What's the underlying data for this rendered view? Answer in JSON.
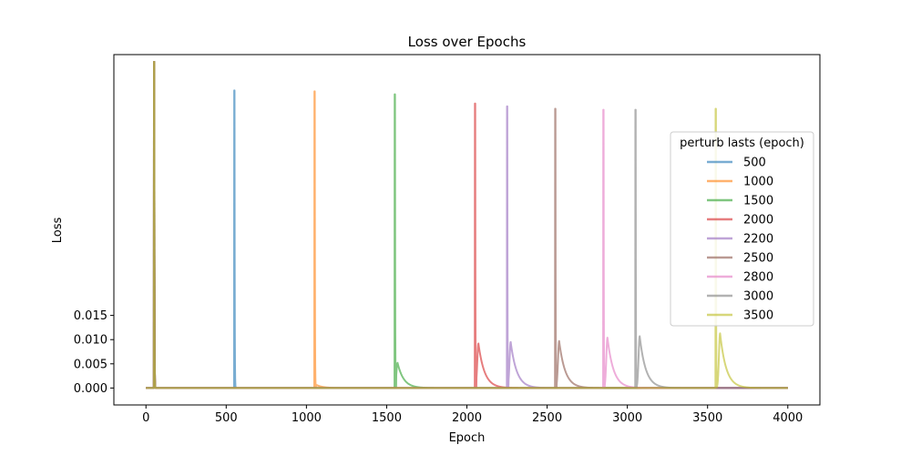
{
  "chart_data": {
    "type": "line",
    "title": "Loss over Epochs",
    "xlabel": "Epoch",
    "ylabel": "Loss",
    "xlim": [
      -200,
      4200
    ],
    "ylim": [
      -0.0035,
      0.0689
    ],
    "xticks": [
      0,
      500,
      1000,
      1500,
      2000,
      2500,
      3000,
      3500,
      4000
    ],
    "xtick_labels": [
      "0",
      "500",
      "1000",
      "1500",
      "2000",
      "2500",
      "3000",
      "3500",
      "4000"
    ],
    "yticks": [
      0.0,
      0.005,
      0.01,
      0.015
    ],
    "ytick_labels": [
      "0.000",
      "0.005",
      "0.010",
      "0.015"
    ],
    "x_range": [
      0,
      4000
    ],
    "baseline_spike": {
      "epoch": 50,
      "peak": 0.0674
    },
    "legend": {
      "title": "perturb lasts (epoch)",
      "placement": "right"
    },
    "series": [
      {
        "name": "500",
        "color": "#1f77b4",
        "spike_epoch": 550,
        "spike_peak": 0.0615,
        "bump_peak": 0.0,
        "bump_epoch": 570
      },
      {
        "name": "1000",
        "color": "#ff7f0e",
        "spike_epoch": 1050,
        "spike_peak": 0.0613,
        "bump_peak": 0.0006,
        "bump_epoch": 1065
      },
      {
        "name": "1500",
        "color": "#2ca02c",
        "spike_epoch": 1550,
        "spike_peak": 0.0607,
        "bump_peak": 0.0052,
        "bump_epoch": 1568
      },
      {
        "name": "2000",
        "color": "#d62728",
        "spike_epoch": 2050,
        "spike_peak": 0.0588,
        "bump_peak": 0.0092,
        "bump_epoch": 2072
      },
      {
        "name": "2200",
        "color": "#9467bd",
        "spike_epoch": 2250,
        "spike_peak": 0.0582,
        "bump_peak": 0.0095,
        "bump_epoch": 2273
      },
      {
        "name": "2500",
        "color": "#8c564b",
        "spike_epoch": 2550,
        "spike_peak": 0.0577,
        "bump_peak": 0.0097,
        "bump_epoch": 2575
      },
      {
        "name": "2800",
        "color": "#e377c2",
        "spike_epoch": 2850,
        "spike_peak": 0.0575,
        "bump_peak": 0.0104,
        "bump_epoch": 2876
      },
      {
        "name": "3000",
        "color": "#7f7f7f",
        "spike_epoch": 3050,
        "spike_peak": 0.0575,
        "bump_peak": 0.0107,
        "bump_epoch": 3077
      },
      {
        "name": "3500",
        "color": "#bcbd22",
        "spike_epoch": 3550,
        "spike_peak": 0.0577,
        "bump_peak": 0.0113,
        "bump_epoch": 3578
      }
    ]
  }
}
